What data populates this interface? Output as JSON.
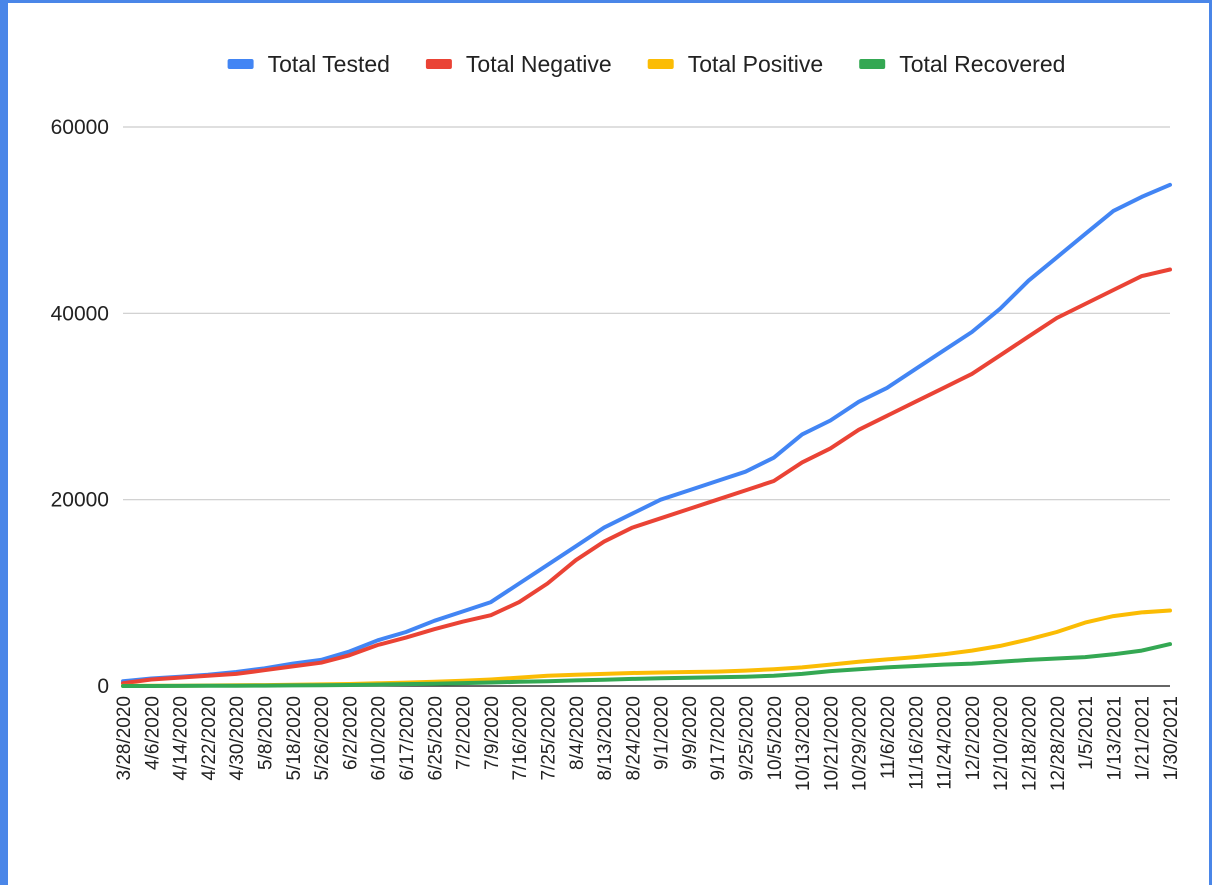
{
  "chart_data": {
    "type": "line",
    "title": "",
    "xlabel": "",
    "ylabel": "",
    "legend_position": "top",
    "grid": true,
    "ylim": [
      0,
      60000
    ],
    "y_ticks": [
      "0",
      "20000",
      "40000",
      "60000"
    ],
    "x_tick_labels": [
      "3/28/2020",
      "4/6/2020",
      "4/14/2020",
      "4/22/2020",
      "4/30/2020",
      "5/8/2020",
      "5/18/2020",
      "5/26/2020",
      "6/2/2020",
      "6/10/2020",
      "6/17/2020",
      "6/25/2020",
      "7/2/2020",
      "7/9/2020",
      "7/16/2020",
      "7/25/2020",
      "8/4/2020",
      "8/13/2020",
      "8/24/2020",
      "9/1/2020",
      "9/9/2020",
      "9/17/2020",
      "9/25/2020",
      "10/5/2020",
      "10/13/2020",
      "10/21/2020",
      "10/29/2020",
      "11/6/2020",
      "11/16/2020",
      "11/24/2020",
      "12/2/2020",
      "12/10/2020",
      "12/18/2020",
      "12/28/2020",
      "1/5/2021",
      "1/13/2021",
      "1/21/2021",
      "1/30/2021"
    ],
    "series": [
      {
        "name": "Total Tested",
        "color": "#4285f4",
        "values": [
          500,
          800,
          1000,
          1200,
          1500,
          1900,
          2400,
          2800,
          3700,
          4900,
          5800,
          7000,
          8000,
          9000,
          11000,
          13000,
          15000,
          17000,
          18500,
          20000,
          21000,
          22000,
          23000,
          24500,
          27000,
          28500,
          30500,
          32000,
          34000,
          36000,
          38000,
          40500,
          43500,
          46000,
          48500,
          51000,
          52500,
          53800
        ]
      },
      {
        "name": "Total Negative",
        "color": "#ea4335",
        "values": [
          300,
          700,
          900,
          1100,
          1300,
          1700,
          2100,
          2500,
          3300,
          4400,
          5200,
          6100,
          6900,
          7600,
          9000,
          11000,
          13500,
          15500,
          17000,
          18000,
          19000,
          20000,
          21000,
          22000,
          24000,
          25500,
          27500,
          29000,
          30500,
          32000,
          33500,
          35500,
          37500,
          39500,
          41000,
          42500,
          44000,
          44700
        ]
      },
      {
        "name": "Total Positive",
        "color": "#fbbc04",
        "values": [
          10,
          20,
          30,
          50,
          70,
          100,
          130,
          170,
          220,
          290,
          370,
          460,
          560,
          700,
          900,
          1100,
          1200,
          1300,
          1400,
          1450,
          1500,
          1550,
          1650,
          1800,
          2000,
          2300,
          2600,
          2850,
          3100,
          3400,
          3800,
          4300,
          5000,
          5800,
          6800,
          7500,
          7900,
          8100
        ]
      },
      {
        "name": "Total Recovered",
        "color": "#34a853",
        "values": [
          0,
          5,
          10,
          20,
          30,
          40,
          60,
          80,
          110,
          150,
          200,
          250,
          310,
          380,
          450,
          520,
          600,
          680,
          760,
          830,
          880,
          930,
          1000,
          1100,
          1300,
          1600,
          1800,
          2000,
          2150,
          2300,
          2400,
          2600,
          2800,
          2950,
          3100,
          3400,
          3800,
          4500
        ]
      }
    ]
  }
}
